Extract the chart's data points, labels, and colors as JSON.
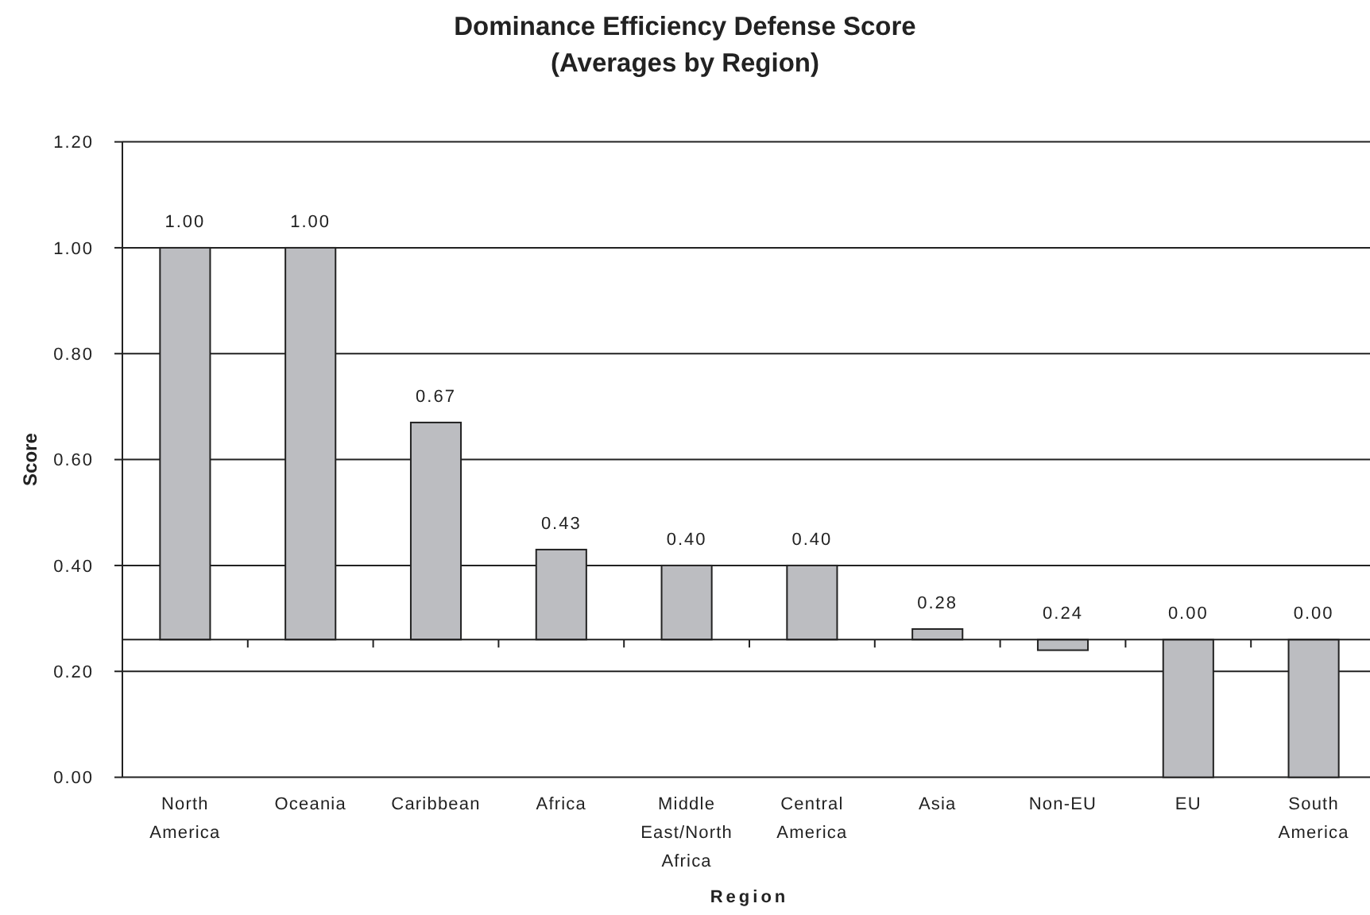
{
  "chart_data": {
    "type": "bar",
    "title": "Dominance Efficiency Defense Score",
    "subtitle": "(Averages by Region)",
    "xlabel": "Region",
    "ylabel": "Score",
    "categories": [
      "North America",
      "Oceania",
      "Caribbean",
      "Africa",
      "Middle East/North Africa",
      "Central America",
      "Asia",
      "Non-EU",
      "EU",
      "South America"
    ],
    "base": [
      0.26,
      0.26,
      0.26,
      0.26,
      0.26,
      0.26,
      0.26,
      0.26,
      0.26,
      0.26
    ],
    "values": [
      0.74,
      0.74,
      0.41,
      0.17,
      0.14,
      0.14,
      0.02,
      -0.02,
      -0.26,
      -0.26
    ],
    "value_labels": [
      "1.00",
      "1.00",
      "0.67",
      "0.43",
      "0.40",
      "0.40",
      "0.28",
      "0.24",
      "0.00",
      "0.00"
    ],
    "color": "#bcbdc1",
    "ylim": [
      0,
      1.2
    ],
    "yticks": [
      {
        "value": 0,
        "label": "0.00"
      },
      {
        "value": 0.2,
        "label": "0.20"
      },
      {
        "value": 0.4,
        "label": "0.40"
      },
      {
        "value": 0.6,
        "label": "0.60"
      },
      {
        "value": 0.8,
        "label": "0.80"
      },
      {
        "value": 1,
        "label": "1.00"
      },
      {
        "value": 1.2,
        "label": "1.20"
      }
    ],
    "grid": "y"
  }
}
